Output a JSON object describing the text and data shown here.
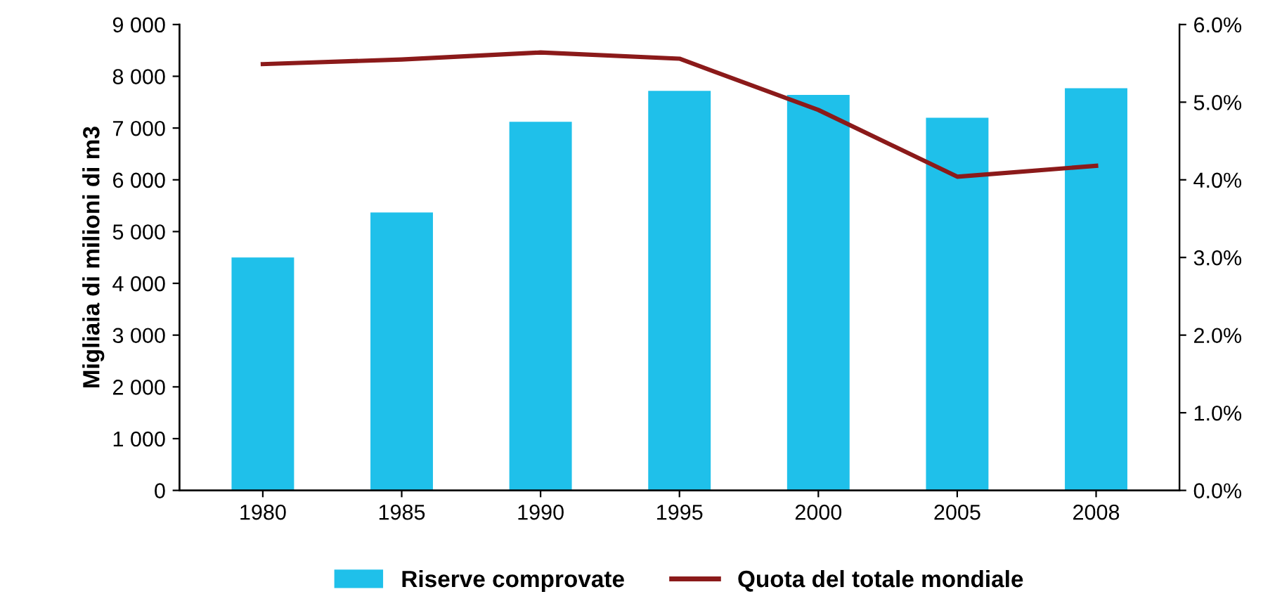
{
  "chart_data": {
    "type": "bar",
    "ylabel": "Migliaia di milioni di m3",
    "categories": [
      "1980",
      "1985",
      "1990",
      "1995",
      "2000",
      "2005",
      "2008"
    ],
    "series": [
      {
        "name": "Riserve comprovate",
        "color": "#1fc0ea",
        "values": [
          4500,
          5370,
          7120,
          7720,
          7640,
          7200,
          7770
        ]
      },
      {
        "name": "Quota del totale mondiale",
        "type": "line",
        "axis": "y2",
        "color": "#8b1a1a",
        "values": [
          5.49,
          5.55,
          5.64,
          5.56,
          4.9,
          4.04,
          4.18
        ]
      }
    ],
    "ylim": [
      0,
      9000
    ],
    "yticks": [
      {
        "value": 0,
        "label": "0"
      },
      {
        "value": 1000,
        "label": "1 000"
      },
      {
        "value": 2000,
        "label": "2 000"
      },
      {
        "value": 3000,
        "label": "3 000"
      },
      {
        "value": 4000,
        "label": "4 000"
      },
      {
        "value": 5000,
        "label": "5 000"
      },
      {
        "value": 6000,
        "label": "6 000"
      },
      {
        "value": 7000,
        "label": "7 000"
      },
      {
        "value": 8000,
        "label": "8 000"
      },
      {
        "value": 9000,
        "label": "9 000"
      }
    ],
    "y2lim": [
      0,
      6
    ],
    "y2ticks": [
      {
        "value": 0,
        "label": "0.0%"
      },
      {
        "value": 1,
        "label": "1.0%"
      },
      {
        "value": 2,
        "label": "2.0%"
      },
      {
        "value": 3,
        "label": "3.0%"
      },
      {
        "value": 4,
        "label": "4.0%"
      },
      {
        "value": 5,
        "label": "5.0%"
      },
      {
        "value": 6,
        "label": "6.0%"
      }
    ],
    "grid": false,
    "legend": "bottom",
    "marker": "none",
    "line_style": "solid"
  }
}
